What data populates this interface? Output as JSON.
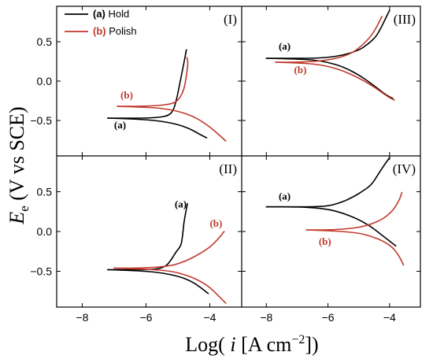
{
  "chart_data": {
    "type": "line",
    "xlabel": "Log( i [A cm−2])",
    "xlabel_parts": {
      "prefix": "Log( ",
      "var": "i",
      "unit": " [A cm",
      "sup": "−2",
      "suffix": "])"
    },
    "ylabel_parts": {
      "var": "E",
      "sub": "e",
      "unit": " (V vs SCE)"
    },
    "xlim": [
      -8.8,
      -3.0
    ],
    "ylim": [
      -0.95,
      0.95
    ],
    "xticks": [
      -8,
      -6,
      -4
    ],
    "xtick_labels": [
      "−8",
      "−6",
      "−4"
    ],
    "yticks": [
      -0.5,
      0.0,
      0.5
    ],
    "ytick_labels": [
      "−0.5",
      "0.0",
      "0.5"
    ],
    "colors": {
      "hold": "#000000",
      "polish": "#c0392b"
    },
    "legend": {
      "placement": "top-left of panel (I)",
      "entries": [
        {
          "key": "(a)",
          "label": "Hold",
          "color": "#000000"
        },
        {
          "key": "(b)",
          "label": "Polish",
          "color": "#c0392b"
        }
      ]
    },
    "panels": [
      {
        "id": "I",
        "label": "(I)",
        "label_position": "top-right",
        "series": [
          {
            "curve": "a",
            "color": "#000000",
            "anodic": [
              [
                -7.2,
                -0.47
              ],
              [
                -6.5,
                -0.47
              ],
              [
                -6.0,
                -0.47
              ],
              [
                -5.6,
                -0.46
              ],
              [
                -5.3,
                -0.44
              ],
              [
                -5.15,
                -0.38
              ],
              [
                -5.05,
                -0.25
              ],
              [
                -4.95,
                -0.05
              ],
              [
                -4.85,
                0.15
              ],
              [
                -4.78,
                0.3
              ],
              [
                -4.72,
                0.42
              ],
              [
                -4.76,
                0.35
              ]
            ],
            "cathodic": [
              [
                -7.2,
                -0.47
              ],
              [
                -6.5,
                -0.48
              ],
              [
                -6.0,
                -0.49
              ],
              [
                -5.5,
                -0.51
              ],
              [
                -5.0,
                -0.55
              ],
              [
                -4.6,
                -0.61
              ],
              [
                -4.3,
                -0.68
              ],
              [
                -4.1,
                -0.72
              ]
            ],
            "labels": [
              {
                "text": "(a)",
                "x": -7.0,
                "y": -0.6
              }
            ]
          },
          {
            "curve": "b",
            "color": "#c0392b",
            "anodic": [
              [
                -6.9,
                -0.32
              ],
              [
                -6.2,
                -0.32
              ],
              [
                -5.6,
                -0.31
              ],
              [
                -5.2,
                -0.29
              ],
              [
                -5.0,
                -0.25
              ],
              [
                -4.85,
                -0.15
              ],
              [
                -4.78,
                -0.05
              ],
              [
                -4.72,
                0.1
              ],
              [
                -4.68,
                0.25
              ],
              [
                -4.72,
                0.3
              ]
            ],
            "cathodic": [
              [
                -6.9,
                -0.32
              ],
              [
                -6.2,
                -0.33
              ],
              [
                -5.6,
                -0.34
              ],
              [
                -5.0,
                -0.38
              ],
              [
                -4.5,
                -0.45
              ],
              [
                -4.1,
                -0.55
              ],
              [
                -3.8,
                -0.65
              ],
              [
                -3.5,
                -0.76
              ]
            ],
            "labels": [
              {
                "text": "(b)",
                "x": -6.8,
                "y": -0.22
              }
            ]
          }
        ]
      },
      {
        "id": "III",
        "label": "(III)",
        "label_position": "top-right",
        "series": [
          {
            "curve": "a",
            "color": "#000000",
            "anodic": [
              [
                -8.0,
                0.29
              ],
              [
                -7.0,
                0.29
              ],
              [
                -6.5,
                0.29
              ],
              [
                -6.0,
                0.3
              ],
              [
                -5.5,
                0.33
              ],
              [
                -5.0,
                0.39
              ],
              [
                -4.7,
                0.47
              ],
              [
                -4.45,
                0.56
              ],
              [
                -4.3,
                0.66
              ],
              [
                -4.15,
                0.78
              ],
              [
                -4.0,
                0.9
              ]
            ],
            "cathodic": [
              [
                -8.0,
                0.29
              ],
              [
                -7.0,
                0.28
              ],
              [
                -6.5,
                0.27
              ],
              [
                -6.0,
                0.24
              ],
              [
                -5.5,
                0.18
              ],
              [
                -5.0,
                0.08
              ],
              [
                -4.6,
                -0.03
              ],
              [
                -4.3,
                -0.12
              ],
              [
                -4.1,
                -0.18
              ],
              [
                -3.9,
                -0.22
              ]
            ],
            "labels": [
              {
                "text": "(a)",
                "x": -7.6,
                "y": 0.4
              }
            ]
          },
          {
            "curve": "b",
            "color": "#c0392b",
            "anodic": [
              [
                -7.7,
                0.24
              ],
              [
                -7.0,
                0.24
              ],
              [
                -6.4,
                0.25
              ],
              [
                -6.0,
                0.27
              ],
              [
                -5.6,
                0.3
              ],
              [
                -5.2,
                0.36
              ],
              [
                -4.9,
                0.45
              ],
              [
                -4.6,
                0.57
              ],
              [
                -4.4,
                0.7
              ],
              [
                -4.25,
                0.82
              ]
            ],
            "cathodic": [
              [
                -7.7,
                0.24
              ],
              [
                -7.0,
                0.23
              ],
              [
                -6.5,
                0.22
              ],
              [
                -6.0,
                0.19
              ],
              [
                -5.5,
                0.13
              ],
              [
                -5.0,
                0.04
              ],
              [
                -4.6,
                -0.05
              ],
              [
                -4.3,
                -0.13
              ],
              [
                -4.05,
                -0.2
              ],
              [
                -3.85,
                -0.24
              ]
            ],
            "labels": [
              {
                "text": "(b)",
                "x": -7.1,
                "y": 0.1
              }
            ]
          }
        ]
      },
      {
        "id": "II",
        "label": "(II)",
        "label_position": "top-right",
        "series": [
          {
            "curve": "a",
            "color": "#000000",
            "anodic": [
              [
                -7.2,
                -0.48
              ],
              [
                -6.5,
                -0.48
              ],
              [
                -6.0,
                -0.48
              ],
              [
                -5.6,
                -0.47
              ],
              [
                -5.35,
                -0.43
              ],
              [
                -5.2,
                -0.35
              ],
              [
                -5.05,
                -0.25
              ],
              [
                -4.9,
                -0.18
              ],
              [
                -4.85,
                -0.05
              ],
              [
                -4.82,
                0.1
              ],
              [
                -4.75,
                0.25
              ],
              [
                -4.7,
                0.35
              ]
            ],
            "cathodic": [
              [
                -7.2,
                -0.48
              ],
              [
                -6.5,
                -0.49
              ],
              [
                -6.0,
                -0.5
              ],
              [
                -5.5,
                -0.52
              ],
              [
                -5.0,
                -0.56
              ],
              [
                -4.6,
                -0.62
              ],
              [
                -4.3,
                -0.7
              ],
              [
                -4.05,
                -0.78
              ]
            ],
            "labels": [
              {
                "text": "(a)",
                "x": -5.1,
                "y": 0.3
              }
            ]
          },
          {
            "curve": "b",
            "color": "#c0392b",
            "anodic": [
              [
                -7.0,
                -0.46
              ],
              [
                -6.3,
                -0.46
              ],
              [
                -5.7,
                -0.45
              ],
              [
                -5.2,
                -0.43
              ],
              [
                -4.8,
                -0.38
              ],
              [
                -4.4,
                -0.3
              ],
              [
                -4.0,
                -0.2
              ],
              [
                -3.75,
                -0.1
              ],
              [
                -3.55,
                0.0
              ]
            ],
            "cathodic": [
              [
                -7.0,
                -0.46
              ],
              [
                -6.3,
                -0.47
              ],
              [
                -5.7,
                -0.48
              ],
              [
                -5.2,
                -0.5
              ],
              [
                -4.8,
                -0.54
              ],
              [
                -4.4,
                -0.6
              ],
              [
                -4.0,
                -0.7
              ],
              [
                -3.7,
                -0.82
              ],
              [
                -3.5,
                -0.9
              ]
            ],
            "labels": [
              {
                "text": "(b)",
                "x": -4.0,
                "y": 0.06
              }
            ]
          }
        ]
      },
      {
        "id": "IV",
        "label": "(IV)",
        "label_position": "top-right",
        "series": [
          {
            "curve": "a",
            "color": "#000000",
            "anodic": [
              [
                -8.0,
                0.31
              ],
              [
                -7.0,
                0.31
              ],
              [
                -6.5,
                0.31
              ],
              [
                -6.0,
                0.32
              ],
              [
                -5.6,
                0.36
              ],
              [
                -5.2,
                0.43
              ],
              [
                -4.9,
                0.5
              ],
              [
                -4.6,
                0.58
              ],
              [
                -4.4,
                0.7
              ],
              [
                -4.2,
                0.82
              ],
              [
                -4.0,
                0.93
              ]
            ],
            "cathodic": [
              [
                -8.0,
                0.31
              ],
              [
                -7.0,
                0.31
              ],
              [
                -6.5,
                0.3
              ],
              [
                -6.0,
                0.28
              ],
              [
                -5.5,
                0.23
              ],
              [
                -5.0,
                0.15
              ],
              [
                -4.6,
                0.06
              ],
              [
                -4.3,
                -0.03
              ],
              [
                -4.0,
                -0.12
              ],
              [
                -3.8,
                -0.18
              ]
            ],
            "labels": [
              {
                "text": "(a)",
                "x": -7.6,
                "y": 0.4
              }
            ]
          },
          {
            "curve": "b",
            "color": "#c0392b",
            "anodic": [
              [
                -6.7,
                0.02
              ],
              [
                -6.0,
                0.02
              ],
              [
                -5.5,
                0.03
              ],
              [
                -5.0,
                0.05
              ],
              [
                -4.6,
                0.09
              ],
              [
                -4.2,
                0.16
              ],
              [
                -3.9,
                0.26
              ],
              [
                -3.7,
                0.38
              ],
              [
                -3.6,
                0.49
              ]
            ],
            "cathodic": [
              [
                -6.7,
                0.02
              ],
              [
                -6.0,
                0.01
              ],
              [
                -5.5,
                0.0
              ],
              [
                -5.0,
                -0.02
              ],
              [
                -4.6,
                -0.06
              ],
              [
                -4.2,
                -0.12
              ],
              [
                -3.9,
                -0.2
              ],
              [
                -3.7,
                -0.3
              ],
              [
                -3.55,
                -0.42
              ]
            ],
            "labels": [
              {
                "text": "(b)",
                "x": -6.3,
                "y": -0.17
              }
            ]
          }
        ]
      }
    ]
  }
}
